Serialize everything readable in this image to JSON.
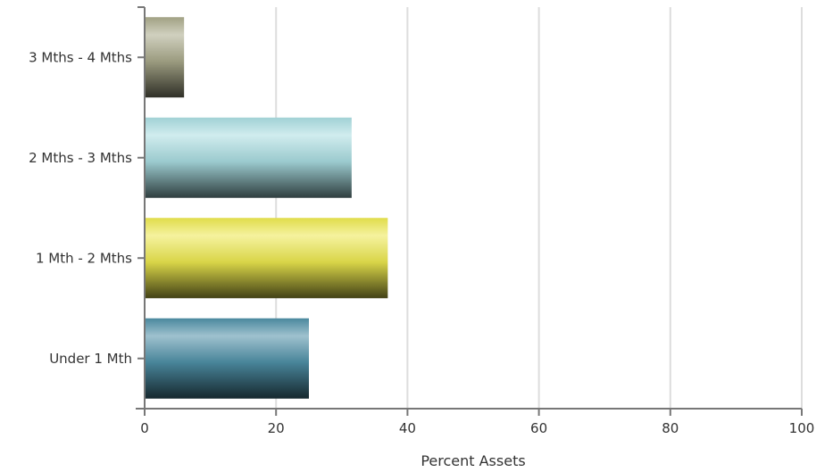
{
  "chart_data": {
    "type": "bar",
    "orientation": "horizontal",
    "title": "",
    "xlabel": "Percent Assets",
    "ylabel": "",
    "xlim": [
      0,
      100
    ],
    "xticks": [
      "0",
      "20",
      "40",
      "60",
      "80",
      "100"
    ],
    "grid": true,
    "categories": [
      "Under 1 Mth",
      "1 Mth - 2 Mths",
      "2 Mths - 3 Mths",
      "3 Mths - 4 Mths"
    ],
    "values": [
      25,
      37,
      31.5,
      6
    ],
    "colors": [
      "#4e8fa6",
      "#ece84e",
      "#a9dce0",
      "#a9a98a"
    ]
  }
}
